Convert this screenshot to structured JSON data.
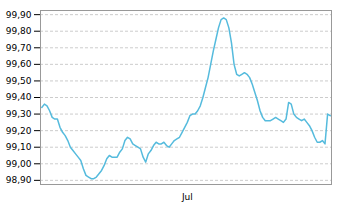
{
  "chart_data": {
    "type": "line",
    "categories": [
      null,
      null,
      null,
      null,
      null,
      null,
      null,
      null,
      null,
      null,
      null,
      null,
      null,
      null,
      null,
      null,
      null,
      null,
      null,
      null,
      null,
      null,
      null,
      null,
      null,
      null,
      null,
      null,
      null,
      null,
      null,
      null,
      null,
      null,
      null,
      null,
      null,
      null,
      null,
      null,
      null,
      null,
      null,
      null,
      null,
      null,
      null,
      null,
      null,
      null,
      null,
      null,
      null,
      null,
      null,
      null,
      "Jul",
      null,
      null,
      null,
      null,
      null,
      null,
      null,
      null,
      null,
      null,
      null,
      null,
      null,
      null,
      null,
      null,
      null,
      null,
      null,
      null,
      null,
      null,
      null,
      null,
      null,
      null,
      null,
      null,
      null,
      null,
      null,
      null,
      null,
      null,
      null,
      null,
      null,
      null,
      null,
      null,
      null,
      null,
      null,
      null,
      null,
      null,
      null,
      null,
      null,
      null,
      null,
      null,
      null,
      null,
      null
    ],
    "values": [
      99.34,
      99.36,
      99.35,
      99.32,
      99.28,
      99.27,
      99.27,
      99.22,
      99.19,
      99.17,
      99.14,
      99.1,
      99.08,
      99.06,
      99.04,
      99.02,
      98.97,
      98.93,
      98.92,
      98.91,
      98.91,
      98.92,
      98.94,
      98.96,
      98.99,
      99.03,
      99.05,
      99.04,
      99.04,
      99.04,
      99.07,
      99.09,
      99.14,
      99.16,
      99.15,
      99.12,
      99.11,
      99.1,
      99.09,
      99.04,
      99.01,
      99.06,
      99.08,
      99.11,
      99.13,
      99.12,
      99.12,
      99.13,
      99.11,
      99.1,
      99.12,
      99.14,
      99.15,
      99.16,
      99.19,
      99.22,
      99.25,
      99.29,
      99.3,
      99.3,
      99.32,
      99.35,
      99.4,
      99.46,
      99.52,
      99.6,
      99.68,
      99.75,
      99.82,
      99.87,
      99.88,
      99.87,
      99.82,
      99.73,
      99.6,
      99.54,
      99.53,
      99.54,
      99.55,
      99.54,
      99.52,
      99.48,
      99.43,
      99.38,
      99.32,
      99.28,
      99.26,
      99.26,
      99.26,
      99.27,
      99.28,
      99.27,
      99.26,
      99.25,
      99.27,
      99.37,
      99.36,
      99.3,
      99.28,
      99.27,
      99.26,
      99.27,
      99.25,
      99.23,
      99.2,
      99.16,
      99.13,
      99.13,
      99.14,
      99.12,
      99.3,
      99.29
    ],
    "color": "#55bbdd",
    "ylim": [
      98.875,
      99.925
    ],
    "yticks": [
      {
        "value": 98.9,
        "label": "98,90"
      },
      {
        "value": 99.0,
        "label": "99,00"
      },
      {
        "value": 99.1,
        "label": "99,10"
      },
      {
        "value": 99.2,
        "label": "99,20"
      },
      {
        "value": 99.3,
        "label": "99,30"
      },
      {
        "value": 99.4,
        "label": "99,40"
      },
      {
        "value": 99.5,
        "label": "99,50"
      },
      {
        "value": 99.6,
        "label": "99,60"
      },
      {
        "value": 99.7,
        "label": "99,70"
      },
      {
        "value": 99.8,
        "label": "99,80"
      },
      {
        "value": 99.9,
        "label": "99,90"
      }
    ],
    "grid": true
  }
}
